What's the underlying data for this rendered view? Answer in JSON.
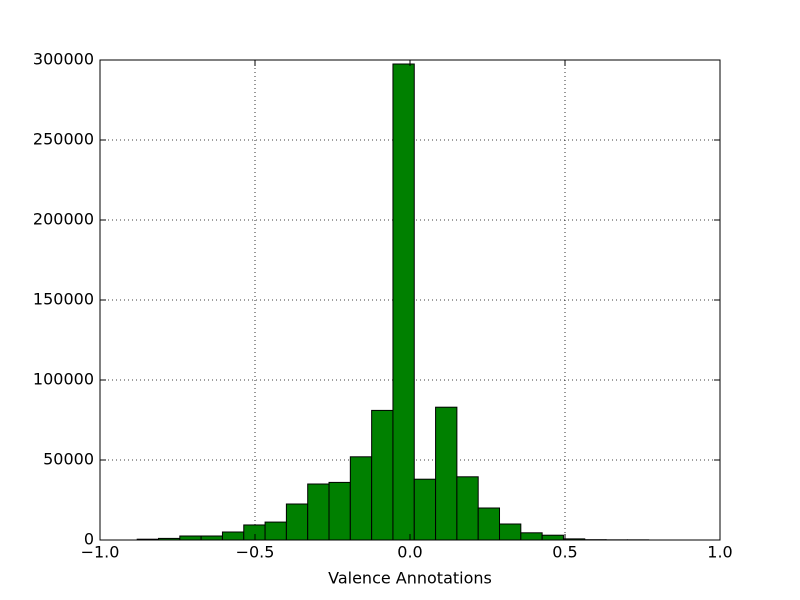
{
  "chart_data": {
    "type": "histogram",
    "xlabel": "Valence Annotations",
    "bins": [
      -0.88,
      -0.81125,
      -0.7425,
      -0.67375,
      -0.605,
      -0.53625,
      -0.4675,
      -0.39875,
      -0.33,
      -0.26125,
      -0.1925,
      -0.12375,
      -0.055,
      0.01375,
      0.0825,
      0.15125,
      0.22,
      0.28875,
      0.3575,
      0.42625,
      0.495,
      0.56375,
      0.6325,
      0.70125,
      0.77
    ],
    "values": [
      500,
      1000,
      2500,
      2500,
      5000,
      9400,
      11200,
      22500,
      35000,
      36000,
      52000,
      81000,
      297500,
      38000,
      83000,
      39500,
      20000,
      10000,
      4500,
      3000,
      700,
      200,
      100,
      100
    ],
    "color": "#008000",
    "xlim": [
      -1.0,
      1.0
    ],
    "xticks": [
      {
        "value": -1.0,
        "label": "−1.0"
      },
      {
        "value": -0.5,
        "label": "−0.5"
      },
      {
        "value": 0.0,
        "label": "0.0"
      },
      {
        "value": 0.5,
        "label": "0.5"
      },
      {
        "value": 1.0,
        "label": "1.0"
      }
    ],
    "ylim": [
      0,
      300000
    ],
    "yticks": [
      0,
      50000,
      100000,
      150000,
      200000,
      250000,
      300000
    ],
    "grid": true
  }
}
